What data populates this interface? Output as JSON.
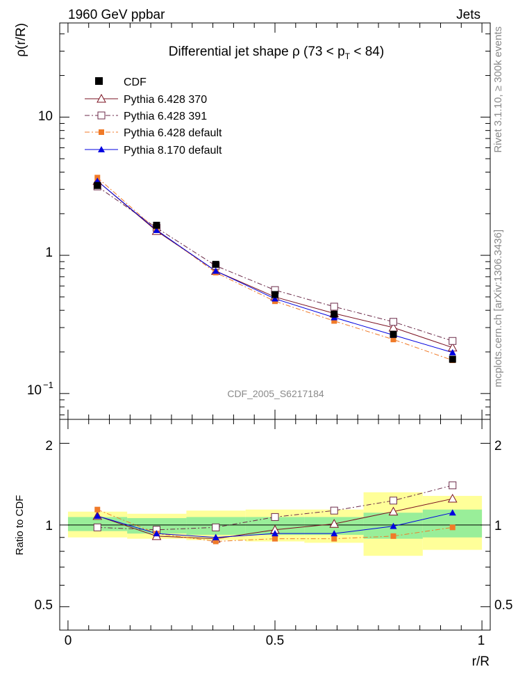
{
  "header": {
    "left": "1960 GeV ppbar",
    "right": "Jets"
  },
  "side_labels": {
    "rivet": "Rivet 3.1.10, ≥ 300k events",
    "mcplots": "mcplots.cern.ch [arXiv:1306.3436]"
  },
  "chart_data": [
    {
      "type": "line",
      "title": "Differential jet shape  ρ (73 < p_T < 84)",
      "title_parts": {
        "main": "Differential jet shape  ρ (73 < p",
        "sub": "T",
        "tail": " < 84)"
      },
      "analysis_label": "CDF_2005_S6217184",
      "ylabel": "ρ(r/R)",
      "xlabel": "",
      "yscale": "log",
      "ylim": [
        0.065,
        48
      ],
      "xlim": [
        -0.02,
        1.02
      ],
      "y_ticks": [
        {
          "value": 0.1,
          "label": "10",
          "exp": "−1"
        },
        {
          "value": 1,
          "label": "1",
          "exp": ""
        },
        {
          "value": 10,
          "label": "10",
          "exp": ""
        }
      ],
      "x": [
        0.071,
        0.214,
        0.357,
        0.5,
        0.643,
        0.786,
        0.929
      ],
      "data_series": {
        "name": "CDF",
        "values": [
          3.2,
          1.65,
          0.86,
          0.52,
          0.375,
          0.268,
          0.177
        ],
        "errors": [
          0.1,
          0.05,
          0.03,
          0.02,
          0.015,
          0.012,
          0.008
        ]
      },
      "series": [
        {
          "name": "Pythia 6.428 370",
          "color": "#7a1020",
          "marker": "triangle-open",
          "dash": "",
          "values": [
            3.45,
            1.5,
            0.77,
            0.5,
            0.38,
            0.3,
            0.215
          ]
        },
        {
          "name": "Pythia 6.428 391",
          "color": "#6b2a48",
          "marker": "square-open",
          "dash": "7,3,2,3",
          "values": [
            3.15,
            1.58,
            0.84,
            0.56,
            0.425,
            0.33,
            0.24
          ]
        },
        {
          "name": "Pythia 6.428 default",
          "color": "#f07a28",
          "marker": "square-filled",
          "dash": "7,3,2,3",
          "values": [
            3.65,
            1.53,
            0.75,
            0.465,
            0.335,
            0.246,
            0.174
          ]
        },
        {
          "name": "Pythia 8.170 default",
          "color": "#0000e0",
          "marker": "triangle-filled",
          "dash": "",
          "values": [
            3.45,
            1.52,
            0.77,
            0.485,
            0.355,
            0.265,
            0.198
          ]
        }
      ]
    },
    {
      "type": "line",
      "title": "",
      "ylabel": "Ratio to CDF",
      "xlabel": "r/R",
      "yscale": "log",
      "ylim": [
        0.41,
        2.45
      ],
      "xlim": [
        -0.02,
        1.02
      ],
      "y_ticks": [
        {
          "value": 0.5,
          "label": "0.5"
        },
        {
          "value": 1,
          "label": "1"
        },
        {
          "value": 2,
          "label": "2"
        }
      ],
      "x_ticks": [
        {
          "value": 0,
          "label": "0"
        },
        {
          "value": 0.5,
          "label": "0.5"
        },
        {
          "value": 1,
          "label": "1"
        }
      ],
      "bins": [
        0,
        0.143,
        0.286,
        0.429,
        0.571,
        0.714,
        0.857,
        1.0
      ],
      "band_green": [
        [
          0.95,
          1.07
        ],
        [
          0.93,
          1.06
        ],
        [
          0.92,
          1.07
        ],
        [
          0.92,
          1.07
        ],
        [
          0.92,
          1.07
        ],
        [
          0.89,
          1.11
        ],
        [
          0.9,
          1.14
        ]
      ],
      "band_yellow": [
        [
          0.9,
          1.12
        ],
        [
          0.89,
          1.1
        ],
        [
          0.88,
          1.13
        ],
        [
          0.87,
          1.14
        ],
        [
          0.86,
          1.14
        ],
        [
          0.77,
          1.32
        ],
        [
          0.81,
          1.28
        ]
      ],
      "x": [
        0.071,
        0.214,
        0.357,
        0.5,
        0.643,
        0.786,
        0.929
      ],
      "series": [
        {
          "name": "Pythia 6.428 370",
          "color": "#7a1020",
          "marker": "triangle-open",
          "dash": "",
          "values": [
            1.08,
            0.91,
            0.89,
            0.96,
            1.01,
            1.12,
            1.25
          ]
        },
        {
          "name": "Pythia 6.428 391",
          "color": "#6b2a48",
          "marker": "square-open",
          "dash": "7,3,2,3",
          "values": [
            0.98,
            0.96,
            0.98,
            1.07,
            1.13,
            1.23,
            1.4
          ]
        },
        {
          "name": "Pythia 6.428 default",
          "color": "#f07a28",
          "marker": "square-filled",
          "dash": "7,3,2,3",
          "values": [
            1.14,
            0.93,
            0.87,
            0.89,
            0.89,
            0.91,
            0.98
          ]
        },
        {
          "name": "Pythia 8.170 default",
          "color": "#0000e0",
          "marker": "triangle-filled",
          "dash": "",
          "values": [
            1.08,
            0.93,
            0.9,
            0.93,
            0.93,
            0.99,
            1.11
          ]
        }
      ]
    }
  ]
}
